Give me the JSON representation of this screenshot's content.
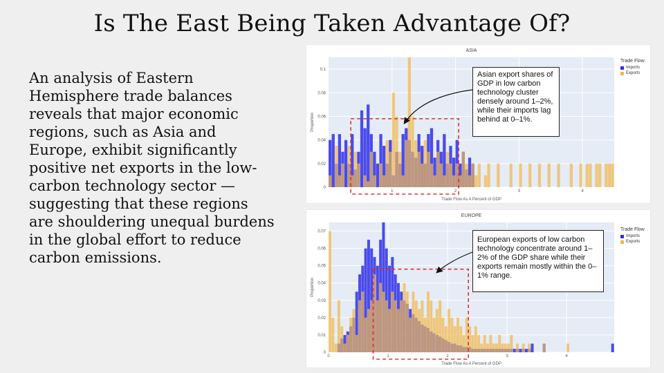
{
  "slide": {
    "title": "Is The East Being Taken Advantage Of?",
    "body": "An analysis of Eastern Hemisphere trade balances reveals that major economic regions, such as Asia and Europe, exhibit significantly positive net exports in the low-carbon technology sector — suggesting that these regions are shouldering unequal burdens in the global effort to reduce carbon emissions."
  },
  "colors": {
    "imports": "#2f2fe8",
    "exports": "#f2b84a",
    "highlight": "#e03030"
  },
  "chart_data": [
    {
      "type": "histogram",
      "title": "ASIA",
      "xlabel": "Trade Flow As A Percent of GDP",
      "ylabel": "Proportion",
      "xlim": [
        0,
        4.5
      ],
      "ylim": [
        0,
        0.11
      ],
      "x_ticks": [
        "1",
        "2",
        "3",
        "4"
      ],
      "y_ticks": [
        "0",
        "0.02",
        "0.04",
        "0.06",
        "0.08",
        "0.1"
      ],
      "legend_title": "Trade Flow",
      "legend_position": "top-right",
      "grid": true,
      "bin_width": 0.05,
      "highlight_box": [
        0.35,
        0,
        2.05,
        0.058
      ],
      "callout": "Asian export shares of GDP in low carbon technology cluster densely around 1–2%, while their imports lag behind at 0–1%.",
      "series": [
        {
          "name": "Imports",
          "values": [
            0.04,
            0.045,
            0.02,
            0.045,
            0.03,
            0.04,
            0.02,
            0.045,
            0.015,
            0.03,
            0.065,
            0.05,
            0.07,
            0.045,
            0.03,
            0.02,
            0.045,
            0.035,
            0.02,
            0.04,
            0.01,
            0.03,
            0.02,
            0.045,
            0.05,
            0.04,
            0.03,
            0.025,
            0.045,
            0.035,
            0.02,
            0.045,
            0.05,
            0.025,
            0.04,
            0.03,
            0.045,
            0.02,
            0.035,
            0.025,
            0.04,
            0.02,
            0.03,
            0.015,
            0.025,
            0.02
          ]
        },
        {
          "name": "Exports",
          "values": [
            0.01,
            0,
            0.035,
            0.01,
            0.02,
            0,
            0.035,
            0.01,
            0.03,
            0.02,
            0,
            0.01,
            0.005,
            0.03,
            0.01,
            0,
            0.02,
            0.01,
            0.04,
            0.03,
            0.08,
            0.06,
            0.03,
            0.01,
            0.04,
            0.11,
            0.06,
            0.04,
            0.03,
            0.02,
            0.04,
            0.03,
            0.02,
            0.01,
            0.03,
            0.02,
            0.01,
            0.03,
            0.02,
            0.01,
            0.02,
            0.01,
            0.03,
            0.02,
            0.01,
            0.02,
            0.01,
            0.02,
            0,
            0.01,
            0.02,
            0,
            0,
            0.02,
            0,
            0,
            0,
            0.02,
            0,
            0,
            0.02,
            0,
            0,
            0.02,
            0,
            0,
            0.02,
            0,
            0,
            0.02,
            0,
            0,
            0.02,
            0,
            0,
            0,
            0.02,
            0,
            0,
            0.02,
            0,
            0.02,
            0.02,
            0,
            0.02,
            0.02,
            0,
            0.02,
            0.02,
            0.02
          ]
        }
      ]
    },
    {
      "type": "histogram",
      "title": "EUROPE",
      "xlabel": "Trade Flow As A Percent of GDP",
      "ylabel": "Proportion",
      "xlim": [
        0,
        4.8
      ],
      "ylim": [
        0,
        0.075
      ],
      "x_ticks": [
        "0",
        "1",
        "2",
        "3",
        "4"
      ],
      "y_ticks": [
        "0",
        "0.01",
        "0.02",
        "0.03",
        "0.04",
        "0.05",
        "0.06",
        "0.07"
      ],
      "legend_title": "Trade Flow",
      "legend_position": "top-right",
      "grid": true,
      "bin_width": 0.05,
      "highlight_box": [
        0.75,
        0,
        2.35,
        0.048
      ],
      "callout": "European exports of low carbon technology concentrate around 1–2% of the GDP share while their exports remain mostly within the 0–1% range.",
      "series": [
        {
          "name": "Imports",
          "values": [
            0,
            0,
            0,
            0.005,
            0.008,
            0.01,
            0.012,
            0.015,
            0.02,
            0.035,
            0.045,
            0.05,
            0.06,
            0.065,
            0.06,
            0.055,
            0.05,
            0.065,
            0.075,
            0.06,
            0.05,
            0.055,
            0.045,
            0.04,
            0.035,
            0.03,
            0.028,
            0.025,
            0.022,
            0.02,
            0.018,
            0.016,
            0.015,
            0.014,
            0.012,
            0.011,
            0.01,
            0.009,
            0.008,
            0.007,
            0.006,
            0.005,
            0.005,
            0.004,
            0.004,
            0.003,
            0.003,
            0.003,
            0.002,
            0.002,
            0.002,
            0.002,
            0.002,
            0.002,
            0.002,
            0.002,
            0.002,
            0.002,
            0.002,
            0.002,
            0.002,
            0.002,
            0.002,
            0.002,
            0.002,
            0.002,
            0.002,
            0.002,
            0.005,
            0,
            0,
            0,
            0.005,
            0,
            0,
            0,
            0,
            0,
            0,
            0,
            0,
            0,
            0,
            0,
            0,
            0,
            0,
            0,
            0,
            0,
            0,
            0,
            0,
            0,
            0,
            0.005
          ]
        },
        {
          "name": "Exports",
          "values": [
            0.07,
            0.02,
            0.005,
            0.03,
            0.015,
            0.005,
            0.01,
            0.02,
            0.025,
            0.01,
            0.03,
            0.035,
            0.02,
            0.025,
            0.03,
            0.045,
            0.03,
            0.04,
            0.035,
            0.03,
            0.025,
            0.035,
            0.03,
            0.025,
            0.03,
            0.04,
            0.035,
            0.02,
            0.035,
            0.03,
            0.025,
            0.03,
            0.02,
            0.035,
            0.03,
            0.02,
            0.025,
            0.03,
            0.02,
            0.015,
            0.025,
            0.02,
            0.015,
            0.02,
            0.015,
            0.01,
            0.02,
            0.015,
            0.01,
            0.015,
            0.01,
            0.005,
            0.01,
            0.005,
            0.01,
            0.005,
            0.005,
            0.01,
            0.005,
            0.005,
            0.005,
            0.01,
            0,
            0.005,
            0,
            0.005,
            0,
            0.005,
            0,
            0,
            0,
            0,
            0.005,
            0,
            0,
            0,
            0,
            0,
            0,
            0,
            0.005,
            0,
            0,
            0,
            0,
            0,
            0,
            0,
            0,
            0,
            0,
            0,
            0,
            0,
            0,
            0
          ]
        }
      ]
    }
  ]
}
